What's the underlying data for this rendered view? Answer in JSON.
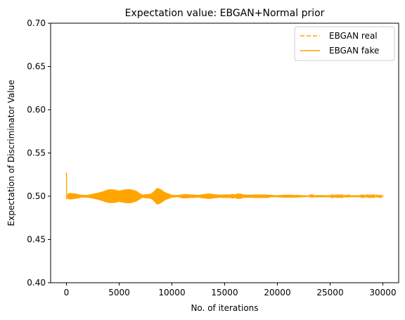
{
  "chart_data": {
    "type": "line",
    "title": "Expectation value: EBGAN+Normal prior",
    "xlabel": "No. of iterations",
    "ylabel": "Expectation of Discriminator Value",
    "xlim": [
      -1500,
      31500
    ],
    "ylim": [
      0.4,
      0.7
    ],
    "xticks": [
      0,
      5000,
      10000,
      15000,
      20000,
      25000,
      30000
    ],
    "xtick_labels": [
      "0",
      "5000",
      "10000",
      "15000",
      "20000",
      "25000",
      "30000"
    ],
    "yticks": [
      0.4,
      0.45,
      0.5,
      0.55,
      0.6,
      0.65,
      0.7
    ],
    "ytick_labels": [
      "0.40",
      "0.45",
      "0.50",
      "0.55",
      "0.60",
      "0.65",
      "0.70"
    ],
    "grid": false,
    "legend_position": "top-right",
    "color": "#FFA500",
    "series": [
      {
        "name": "EBGAN real",
        "style": "dashed"
      },
      {
        "name": "EBGAN fake",
        "style": "solid"
      }
    ],
    "x_range": [
      0,
      30000
    ],
    "center_value": 0.5,
    "initial_spike": 0.527,
    "oscillation_envelope": {
      "x": [
        0,
        300,
        1500,
        3000,
        4000,
        4800,
        5600,
        6500,
        7200,
        8000,
        8600,
        9300,
        10000,
        10600,
        11000,
        11800,
        12500,
        13200,
        13700,
        14500,
        15500,
        16500,
        17500,
        19000,
        22000,
        26000,
        30000
      ],
      "amplitude": [
        0.001,
        0.004,
        0.002,
        0.004,
        0.008,
        0.012,
        0.009,
        0.007,
        0.002,
        0.005,
        0.011,
        0.005,
        0.0015,
        0.002,
        0.004,
        0.002,
        0.0015,
        0.003,
        0.005,
        0.002,
        0.002,
        0.004,
        0.002,
        0.002,
        0.0015,
        0.001,
        0.001
      ]
    }
  }
}
